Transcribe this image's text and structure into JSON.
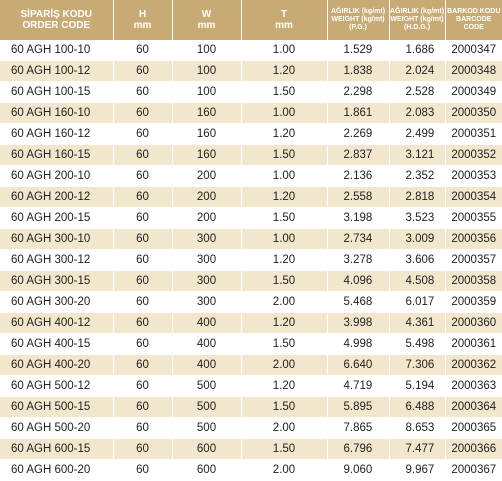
{
  "table": {
    "headers": [
      {
        "l1": "SİPARİŞ KODU",
        "l2": "ORDER CODE"
      },
      {
        "l1": "H",
        "l2": "mm"
      },
      {
        "l1": "W",
        "l2": "mm"
      },
      {
        "l1": "T",
        "l2": "mm"
      },
      {
        "l1": "AĞIRLIK (kg/mt)",
        "l2": "WEIGHT (kg/mt)",
        "l3": "(P.G.)"
      },
      {
        "l1": "AĞIRLIK (kg/mt)",
        "l2": "WEIGHT (kg/mt)",
        "l3": "(H.D.G.)"
      },
      {
        "l1": "BARKOD KODU",
        "l2": "BARCODE CODE"
      }
    ],
    "rows": [
      [
        "60 AGH 100-10",
        "60",
        "100",
        "1.00",
        "1.529",
        "1.686",
        "2000347"
      ],
      [
        "60 AGH 100-12",
        "60",
        "100",
        "1.20",
        "1.838",
        "2.024",
        "2000348"
      ],
      [
        "60 AGH 100-15",
        "60",
        "100",
        "1.50",
        "2.298",
        "2.528",
        "2000349"
      ],
      [
        "60 AGH 160-10",
        "60",
        "160",
        "1.00",
        "1.861",
        "2.083",
        "2000350"
      ],
      [
        "60 AGH 160-12",
        "60",
        "160",
        "1.20",
        "2.269",
        "2.499",
        "2000351"
      ],
      [
        "60 AGH 160-15",
        "60",
        "160",
        "1.50",
        "2.837",
        "3.121",
        "2000352"
      ],
      [
        "60 AGH 200-10",
        "60",
        "200",
        "1.00",
        "2.136",
        "2.352",
        "2000353"
      ],
      [
        "60 AGH 200-12",
        "60",
        "200",
        "1.20",
        "2.558",
        "2.818",
        "2000354"
      ],
      [
        "60 AGH 200-15",
        "60",
        "200",
        "1.50",
        "3.198",
        "3.523",
        "2000355"
      ],
      [
        "60 AGH 300-10",
        "60",
        "300",
        "1.00",
        "2.734",
        "3.009",
        "2000356"
      ],
      [
        "60 AGH 300-12",
        "60",
        "300",
        "1.20",
        "3.278",
        "3.606",
        "2000357"
      ],
      [
        "60 AGH 300-15",
        "60",
        "300",
        "1.50",
        "4.096",
        "4.508",
        "2000358"
      ],
      [
        "60 AGH 300-20",
        "60",
        "300",
        "2.00",
        "5.468",
        "6.017",
        "2000359"
      ],
      [
        "60 AGH 400-12",
        "60",
        "400",
        "1.20",
        "3.998",
        "4.361",
        "2000360"
      ],
      [
        "60 AGH 400-15",
        "60",
        "400",
        "1.50",
        "4.998",
        "5.498",
        "2000361"
      ],
      [
        "60 AGH 400-20",
        "60",
        "400",
        "2.00",
        "6.640",
        "7.306",
        "2000362"
      ],
      [
        "60 AGH 500-12",
        "60",
        "500",
        "1.20",
        "4.719",
        "5.194",
        "2000363"
      ],
      [
        "60 AGH 500-15",
        "60",
        "500",
        "1.50",
        "5.895",
        "6.488",
        "2000364"
      ],
      [
        "60 AGH 500-20",
        "60",
        "500",
        "2.00",
        "7.865",
        "8.653",
        "2000365"
      ],
      [
        "60 AGH 600-15",
        "60",
        "600",
        "1.50",
        "6.796",
        "7.477",
        "2000366"
      ],
      [
        "60 AGH 600-20",
        "60",
        "600",
        "2.00",
        "9.060",
        "9.967",
        "2000367"
      ]
    ]
  },
  "colors": {
    "header_bg": "#c8ab74",
    "header_text": "#ffffff",
    "stripe": "#f2e6cc",
    "text": "#222222"
  }
}
